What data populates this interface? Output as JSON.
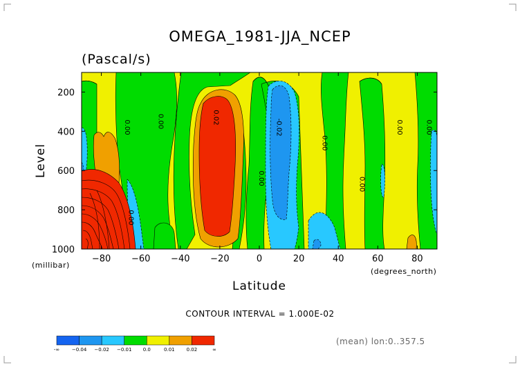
{
  "chart_data": {
    "type": "heatmap",
    "title": "OMEGA_1981-JJA_NCEP",
    "subtitle": "(Pascal/s)",
    "xlabel": "Latitude",
    "ylabel": "Level",
    "x_units": "(degrees_north)",
    "y_units": "(millibar)",
    "xlim": [
      -90,
      90
    ],
    "ylim": [
      1000,
      100
    ],
    "x_ticks": [
      -80,
      -60,
      -40,
      -20,
      0,
      20,
      40,
      60,
      80
    ],
    "x_tick_labels": [
      "−80",
      "−60",
      "−40",
      "−20",
      "0",
      "20",
      "40",
      "60",
      "80"
    ],
    "y_ticks": [
      200,
      400,
      600,
      800,
      1000
    ],
    "y_tick_labels": [
      "200",
      "400",
      "600",
      "800",
      "1000"
    ],
    "contour_interval_text": "CONTOUR INTERVAL = 1.000E-02",
    "footer_note": "(mean) lon:0..357.5",
    "contour_labels": [
      {
        "text": "0.00",
        "x": -68,
        "y": 380
      },
      {
        "text": "0.00",
        "x": -51,
        "y": 350
      },
      {
        "text": "0.02",
        "x": -23,
        "y": 330
      },
      {
        "text": "0.00",
        "x": 0,
        "y": 640
      },
      {
        "text": "-0.02",
        "x": 9,
        "y": 380
      },
      {
        "text": "0.00",
        "x": 32,
        "y": 460
      },
      {
        "text": "0.00",
        "x": 51,
        "y": 670
      },
      {
        "text": "0.00",
        "x": 70,
        "y": 380
      },
      {
        "text": "0.00",
        "x": 85,
        "y": 380
      },
      {
        "text": "0.00",
        "x": -66,
        "y": 840
      }
    ],
    "colorbar": {
      "levels": [
        "-∞",
        "−0.04",
        "−0.02",
        "−0.01",
        "0.0",
        "0.01",
        "0.02",
        "∞"
      ],
      "colors": [
        "#1464f0",
        "#1e96f0",
        "#28c8ff",
        "#00dc00",
        "#f0f000",
        "#f0a000",
        "#f02800"
      ]
    },
    "colors": {
      "strong_down": "#f02800",
      "moderate_down": "#f0a000",
      "weak_down": "#f0f000",
      "neutral": "#00dc00",
      "weak_up": "#28c8ff",
      "moderate_up": "#1e96f0",
      "strong_up": "#1464f0"
    }
  }
}
